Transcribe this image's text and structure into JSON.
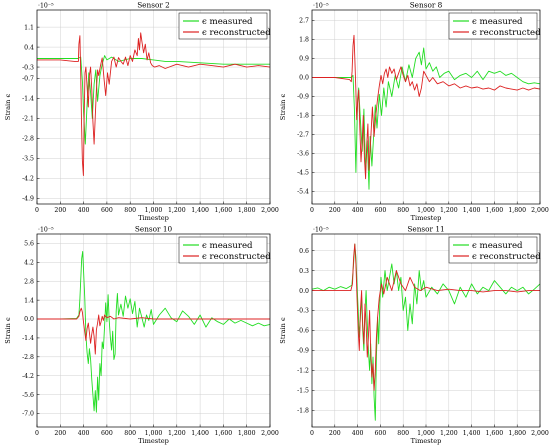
{
  "chart_data": [
    {
      "type": "line",
      "title": "Sensor 2",
      "xlabel": "Timestep",
      "ylabel": "Strain ϵ",
      "exponent": "·10⁻⁵",
      "xlim": [
        0,
        2000
      ],
      "ylim": [
        -5.1,
        1.7
      ],
      "xticks": [
        "0",
        "200",
        "400",
        "600",
        "800",
        "1,000",
        "1,200",
        "1,400",
        "1,600",
        "1,800",
        "2,000"
      ],
      "yticks": [
        "1.1",
        "0.4",
        "-0.3",
        "-0.7",
        "-1.4",
        "-2.1",
        "-2.8",
        "-3.5",
        "-4.2",
        "-4.9"
      ],
      "legend": "top-right",
      "grid": true,
      "series": [
        {
          "name": "ϵ measured",
          "color": "#22dd22",
          "x": [
            0,
            200,
            350,
            375,
            390,
            400,
            415,
            430,
            445,
            460,
            475,
            490,
            505,
            520,
            540,
            560,
            580,
            600,
            640,
            700,
            800,
            900,
            1000,
            1100,
            1200,
            1400,
            1600,
            1800,
            2000
          ],
          "y": [
            0.0,
            0.0,
            0.0,
            0.05,
            -0.8,
            -1.9,
            -3.0,
            -1.6,
            -0.5,
            -1.2,
            -2.1,
            -0.9,
            -0.4,
            -1.5,
            -0.6,
            -0.2,
            0.1,
            -0.05,
            0.05,
            -0.1,
            0.0,
            0.0,
            -0.05,
            -0.1,
            -0.1,
            -0.15,
            -0.2,
            -0.2,
            -0.2
          ]
        },
        {
          "name": "ϵ reconstructed",
          "color": "#dd2222",
          "x": [
            0,
            200,
            320,
            355,
            360,
            368,
            375,
            382,
            390,
            398,
            405,
            412,
            420,
            430,
            440,
            450,
            460,
            470,
            480,
            490,
            500,
            510,
            520,
            530,
            545,
            560,
            575,
            590,
            605,
            620,
            640,
            660,
            680,
            700,
            720,
            740,
            760,
            780,
            800,
            820,
            840,
            860,
            870,
            880,
            890,
            900,
            915,
            930,
            945,
            960,
            975,
            990,
            1010,
            1050,
            1100,
            1200,
            1300,
            1400,
            1500,
            1600,
            1700,
            1800,
            1900,
            2000
          ],
          "y": [
            -0.05,
            -0.05,
            -0.1,
            -0.1,
            0.5,
            0.8,
            -0.5,
            -2.2,
            -3.6,
            -4.1,
            -2.0,
            -0.5,
            -0.3,
            -1.0,
            -1.7,
            -0.6,
            -0.3,
            -1.1,
            -2.2,
            -3.0,
            -2.0,
            -1.1,
            -0.4,
            -0.6,
            -0.25,
            0.02,
            -0.7,
            -1.3,
            -0.5,
            -0.9,
            -0.1,
            0.05,
            -0.3,
            0.03,
            -0.1,
            -0.2,
            0.05,
            -0.25,
            0.1,
            -0.1,
            0.3,
            0.1,
            0.7,
            0.3,
            0.9,
            0.6,
            0.2,
            0.5,
            -0.05,
            0.2,
            -0.15,
            -0.25,
            -0.3,
            -0.25,
            -0.35,
            -0.2,
            -0.3,
            -0.2,
            -0.25,
            -0.3,
            -0.2,
            -0.3,
            -0.25,
            -0.3
          ]
        }
      ]
    },
    {
      "type": "line",
      "title": "Sensor 8",
      "xlabel": "Timestep",
      "ylabel": "Strain ϵ",
      "exponent": "·10⁻⁵",
      "xlim": [
        0,
        2000
      ],
      "ylim": [
        -6.0,
        3.2
      ],
      "xticks": [
        "0",
        "200",
        "400",
        "600",
        "800",
        "1,000",
        "1,200",
        "1,400",
        "1,600",
        "1,800",
        "2,000"
      ],
      "yticks": [
        "2.7",
        "1.8",
        "0.9",
        "0.0",
        "-0.9",
        "-1.8",
        "-2.7",
        "-3.6",
        "-4.5",
        "-5.4"
      ],
      "legend": "top-right",
      "grid": true,
      "series": [
        {
          "name": "ϵ measured",
          "color": "#22dd22",
          "x": [
            0,
            200,
            340,
            360,
            372,
            385,
            400,
            410,
            425,
            440,
            455,
            470,
            485,
            500,
            510,
            525,
            540,
            555,
            570,
            590,
            610,
            630,
            650,
            670,
            700,
            730,
            760,
            790,
            820,
            850,
            880,
            910,
            940,
            960,
            980,
            1000,
            1030,
            1060,
            1090,
            1120,
            1160,
            1200,
            1250,
            1300,
            1350,
            1400,
            1450,
            1500,
            1550,
            1600,
            1650,
            1700,
            1750,
            1800,
            1850,
            1900,
            1950,
            2000
          ],
          "y": [
            0.0,
            0.0,
            0.0,
            0.1,
            -1.5,
            -4.5,
            -1.0,
            -0.5,
            -2.0,
            -3.5,
            -1.5,
            -4.5,
            -3.0,
            -5.3,
            -2.8,
            -4.2,
            -2.8,
            -1.3,
            -2.4,
            -0.8,
            -1.8,
            -0.5,
            -1.4,
            -0.2,
            -0.9,
            0.1,
            -0.5,
            0.5,
            -0.2,
            0.6,
            0.0,
            0.9,
            1.2,
            0.6,
            1.4,
            0.4,
            0.7,
            0.3,
            0.5,
            0.0,
            0.2,
            0.3,
            -0.1,
            0.1,
            0.2,
            0.0,
            0.3,
            -0.1,
            0.3,
            0.2,
            0.3,
            0.1,
            0.2,
            0.0,
            -0.2,
            -0.3,
            -0.25,
            -0.3
          ]
        },
        {
          "name": "ϵ reconstructed",
          "color": "#dd2222",
          "x": [
            0,
            200,
            330,
            345,
            352,
            360,
            368,
            376,
            384,
            392,
            400,
            410,
            420,
            430,
            440,
            450,
            460,
            470,
            480,
            490,
            500,
            510,
            520,
            530,
            545,
            560,
            575,
            590,
            605,
            620,
            635,
            650,
            665,
            680,
            700,
            720,
            740,
            760,
            780,
            800,
            820,
            840,
            860,
            880,
            900,
            920,
            940,
            960,
            980,
            1000,
            1030,
            1060,
            1100,
            1150,
            1200,
            1250,
            1300,
            1350,
            1400,
            1450,
            1500,
            1550,
            1600,
            1650,
            1700,
            1750,
            1800,
            1850,
            1900,
            1950,
            2000
          ],
          "y": [
            0.0,
            0.0,
            -0.1,
            -0.2,
            0.3,
            1.5,
            2.0,
            0.8,
            -0.5,
            -2.0,
            -1.2,
            -0.6,
            -2.5,
            -4.0,
            -3.0,
            -1.8,
            -3.8,
            -4.8,
            -3.2,
            -2.2,
            -4.4,
            -3.5,
            -2.4,
            -1.4,
            -2.8,
            -1.8,
            -1.0,
            -0.4,
            0.1,
            -0.3,
            0.2,
            0.4,
            0.0,
            0.5,
            0.2,
            0.4,
            -0.1,
            0.2,
            0.5,
            0.1,
            -0.2,
            0.1,
            -0.4,
            -0.2,
            -0.6,
            -0.3,
            -0.9,
            -0.5,
            0.3,
            0.1,
            -0.2,
            0.0,
            -0.3,
            -0.2,
            -0.4,
            -0.3,
            -0.5,
            -0.4,
            -0.5,
            -0.45,
            -0.55,
            -0.5,
            -0.6,
            -0.4,
            -0.5,
            -0.55,
            -0.6,
            -0.5,
            -0.6,
            -0.5,
            -0.55
          ]
        }
      ]
    },
    {
      "type": "line",
      "title": "Sensor 10",
      "xlabel": "Timestep",
      "ylabel": "Strain ϵ",
      "exponent": "·10⁻⁵",
      "xlim": [
        0,
        2000
      ],
      "ylim": [
        -8.0,
        6.3
      ],
      "xticks": [
        "0",
        "200",
        "400",
        "600",
        "800",
        "1,000",
        "1,200",
        "1,400",
        "1,600",
        "1,800",
        "2,000"
      ],
      "yticks": [
        "5.6",
        "4.2",
        "2.8",
        "1.4",
        "0.0",
        "-1.4",
        "-2.8",
        "-4.2",
        "-5.6",
        "-7.0"
      ],
      "legend": "top-right",
      "grid": true,
      "series": [
        {
          "name": "ϵ measured",
          "color": "#22dd22",
          "x": [
            0,
            200,
            340,
            360,
            368,
            376,
            384,
            392,
            400,
            410,
            420,
            430,
            440,
            450,
            460,
            470,
            480,
            490,
            500,
            510,
            520,
            530,
            540,
            550,
            560,
            570,
            580,
            590,
            600,
            610,
            620,
            630,
            640,
            650,
            660,
            670,
            680,
            690,
            700,
            720,
            740,
            760,
            780,
            800,
            820,
            840,
            860,
            880,
            900,
            920,
            940,
            960,
            980,
            1000,
            1050,
            1100,
            1150,
            1200,
            1250,
            1300,
            1350,
            1400,
            1450,
            1500,
            1550,
            1600,
            1650,
            1700,
            1750,
            1800,
            1850,
            1900,
            1950,
            2000
          ],
          "y": [
            0.0,
            0.0,
            0.05,
            0.3,
            1.5,
            3.0,
            4.5,
            5.0,
            3.5,
            1.5,
            -1.2,
            -2.5,
            -3.3,
            -2.2,
            -3.0,
            -4.5,
            -5.6,
            -6.8,
            -5.3,
            -6.9,
            -4.3,
            -6.0,
            -3.3,
            -4.2,
            -1.7,
            -2.2,
            -0.5,
            1.2,
            -0.2,
            1.8,
            -0.1,
            -1.4,
            -2.3,
            -0.9,
            -3.0,
            -2.6,
            0.6,
            1.9,
            0.3,
            1.1,
            0.2,
            1.7,
            0.8,
            1.5,
            0.4,
            1.3,
            -0.6,
            0.8,
            0.1,
            -0.6,
            0.3,
            -0.1,
            0.7,
            -0.4,
            0.3,
            0.8,
            0.1,
            -0.2,
            0.6,
            0.2,
            -0.4,
            0.3,
            -0.6,
            0.1,
            -0.2,
            -0.4,
            0.0,
            -0.3,
            -0.1,
            -0.3,
            -0.5,
            -0.3,
            -0.5,
            -0.4
          ]
        },
        {
          "name": "ϵ reconstructed",
          "color": "#dd2222",
          "x": [
            0,
            200,
            340,
            360,
            370,
            380,
            390,
            400,
            410,
            420,
            430,
            440,
            450,
            460,
            470,
            480,
            490,
            500,
            510,
            520,
            530,
            540,
            550,
            560,
            570,
            580,
            600,
            630,
            660,
            700,
            800,
            900,
            1000,
            1200,
            1400,
            1600,
            1800,
            2000
          ],
          "y": [
            0.0,
            0.0,
            0.0,
            0.2,
            0.6,
            0.8,
            0.5,
            -0.3,
            -1.0,
            -1.6,
            -0.7,
            -0.3,
            -1.0,
            -1.8,
            -1.1,
            -0.6,
            -1.3,
            -2.6,
            -0.8,
            -0.3,
            0.3,
            -0.5,
            -0.2,
            0.2,
            -0.1,
            0.3,
            0.1,
            0.2,
            0.0,
            0.1,
            0.0,
            0.1,
            0.0,
            0.0,
            0.0,
            0.0,
            0.0,
            0.0
          ]
        }
      ]
    },
    {
      "type": "line",
      "title": "Sensor 11",
      "xlabel": "Timestep",
      "ylabel": "Strain ϵ",
      "exponent": "·10⁻⁵",
      "xlim": [
        0,
        2000
      ],
      "ylim": [
        -2.05,
        0.85
      ],
      "xticks": [
        "0",
        "200",
        "400",
        "600",
        "800",
        "1,000",
        "1,200",
        "1,400",
        "1,600",
        "1,800",
        "2,000"
      ],
      "yticks": [
        "0.6",
        "0.3",
        "0.0",
        "-0.3",
        "-0.6",
        "-0.9",
        "-1.2",
        "-1.5",
        "-1.8"
      ],
      "legend": "top-right",
      "grid": true,
      "series": [
        {
          "name": "ϵ measured",
          "color": "#22dd22",
          "x": [
            0,
            50,
            100,
            150,
            200,
            250,
            300,
            350,
            365,
            375,
            385,
            395,
            405,
            415,
            425,
            435,
            445,
            455,
            465,
            475,
            485,
            495,
            505,
            515,
            525,
            535,
            545,
            555,
            565,
            575,
            585,
            595,
            605,
            620,
            640,
            660,
            680,
            700,
            720,
            740,
            760,
            780,
            800,
            820,
            840,
            860,
            880,
            900,
            920,
            940,
            960,
            980,
            1000,
            1050,
            1100,
            1150,
            1200,
            1250,
            1300,
            1350,
            1400,
            1450,
            1500,
            1550,
            1600,
            1650,
            1700,
            1750,
            1800,
            1850,
            1900,
            1950,
            2000
          ],
          "y": [
            0.02,
            0.04,
            0.0,
            0.05,
            0.02,
            0.06,
            0.03,
            0.08,
            0.4,
            0.7,
            0.5,
            0.1,
            -0.3,
            -0.7,
            -0.4,
            -0.1,
            -0.6,
            -0.9,
            -0.3,
            0.0,
            -0.5,
            -0.9,
            -1.2,
            -0.8,
            -1.4,
            -1.0,
            -1.6,
            -1.95,
            -1.0,
            -0.4,
            -0.8,
            -0.2,
            0.2,
            -0.1,
            0.3,
            0.0,
            0.2,
            0.4,
            0.1,
            0.3,
            0.0,
            0.2,
            -0.3,
            -0.1,
            -0.6,
            -0.2,
            -0.5,
            0.1,
            -0.2,
            0.3,
            0.0,
            0.15,
            -0.1,
            0.05,
            -0.05,
            0.1,
            0.0,
            -0.2,
            0.05,
            -0.1,
            0.1,
            -0.05,
            0.05,
            0.0,
            0.15,
            0.05,
            -0.05,
            0.05,
            0.0,
            0.05,
            -0.05,
            0.02,
            0.1
          ]
        },
        {
          "name": "ϵ reconstructed",
          "color": "#dd2222",
          "x": [
            0,
            200,
            340,
            355,
            365,
            375,
            385,
            395,
            405,
            415,
            425,
            435,
            445,
            455,
            465,
            475,
            485,
            495,
            505,
            515,
            525,
            535,
            545,
            555,
            565,
            575,
            590,
            610,
            630,
            660,
            700,
            740,
            780,
            820,
            860,
            900,
            950,
            1000,
            1100,
            1200,
            1300,
            1400,
            1500,
            1600,
            1700,
            1800,
            1900,
            2000
          ],
          "y": [
            0.0,
            0.0,
            0.0,
            0.1,
            0.5,
            0.7,
            0.4,
            -0.1,
            -0.6,
            -0.9,
            -0.3,
            0.0,
            -0.5,
            -0.8,
            -0.2,
            -0.5,
            -1.0,
            -0.7,
            -0.3,
            -0.9,
            -1.3,
            -1.1,
            -1.5,
            -1.2,
            -0.7,
            -0.4,
            -0.1,
            0.1,
            -0.05,
            0.2,
            0.0,
            0.3,
            0.1,
            0.0,
            0.2,
            0.05,
            0.0,
            0.05,
            0.0,
            0.02,
            0.0,
            0.0,
            -0.02,
            0.0,
            0.0,
            -0.02,
            0.0,
            0.0
          ]
        }
      ]
    }
  ]
}
